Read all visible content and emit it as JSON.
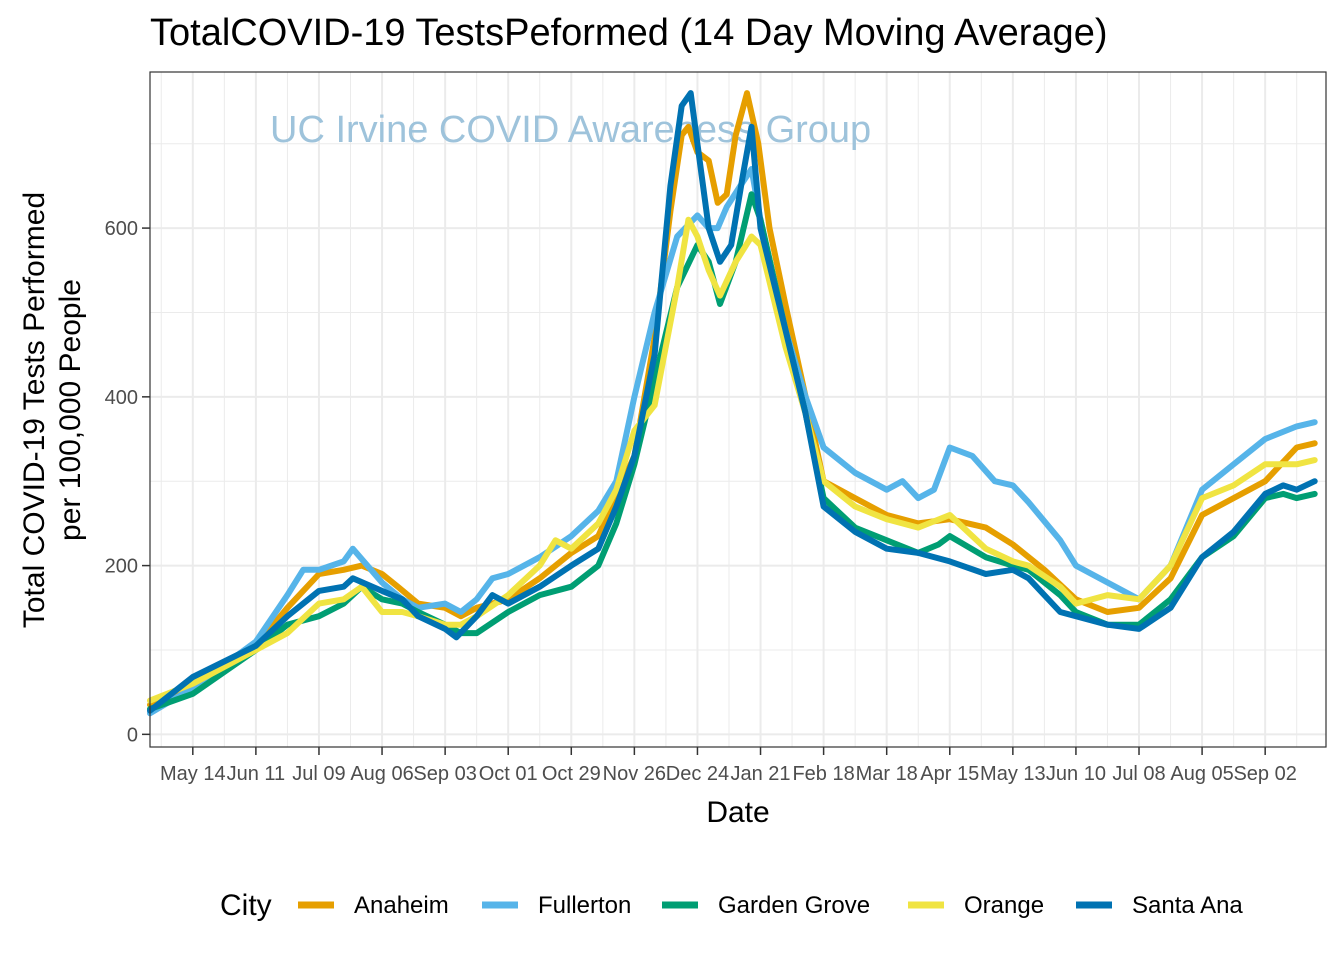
{
  "chart_data": {
    "type": "line",
    "title": "TotalCOVID-19 TestsPeformed (14 Day Moving Average)",
    "annotation": "UC Irvine COVID Awareness Group",
    "xlabel": "Date",
    "ylabel_line1": "Total COVID-19 Tests Performed",
    "ylabel_line2": "per 100,000 People",
    "ylim": [
      -15,
      785
    ],
    "yticks": [
      0,
      200,
      400,
      600
    ],
    "xlim": [
      "2020-04-25",
      "2021-09-29"
    ],
    "xticks": [
      {
        "date": "2020-05-14",
        "label": "May 14"
      },
      {
        "date": "2020-06-11",
        "label": "Jun 11"
      },
      {
        "date": "2020-07-09",
        "label": "Jul 09"
      },
      {
        "date": "2020-08-06",
        "label": "Aug 06"
      },
      {
        "date": "2020-09-03",
        "label": "Sep 03"
      },
      {
        "date": "2020-10-01",
        "label": "Oct 01"
      },
      {
        "date": "2020-10-29",
        "label": "Oct 29"
      },
      {
        "date": "2020-11-26",
        "label": "Nov 26"
      },
      {
        "date": "2020-12-24",
        "label": "Dec 24"
      },
      {
        "date": "2021-01-21",
        "label": "Jan 21"
      },
      {
        "date": "2021-02-18",
        "label": "Feb 18"
      },
      {
        "date": "2021-03-18",
        "label": "Mar 18"
      },
      {
        "date": "2021-04-15",
        "label": "Apr 15"
      },
      {
        "date": "2021-05-13",
        "label": "May 13"
      },
      {
        "date": "2021-06-10",
        "label": "Jun 10"
      },
      {
        "date": "2021-07-08",
        "label": "Jul 08"
      },
      {
        "date": "2021-08-05",
        "label": "Aug 05"
      },
      {
        "date": "2021-09-02",
        "label": "Sep 02"
      }
    ],
    "grid": true,
    "legend": {
      "title": "City",
      "placement": "bottom"
    },
    "series": [
      {
        "name": "Anaheim",
        "color": "#E69F00",
        "points": [
          [
            "2020-04-25",
            35
          ],
          [
            "2020-05-14",
            60
          ],
          [
            "2020-06-11",
            105
          ],
          [
            "2020-06-25",
            150
          ],
          [
            "2020-07-09",
            190
          ],
          [
            "2020-07-20",
            195
          ],
          [
            "2020-07-28",
            200
          ],
          [
            "2020-08-06",
            190
          ],
          [
            "2020-08-13",
            175
          ],
          [
            "2020-08-22",
            155
          ],
          [
            "2020-09-03",
            150
          ],
          [
            "2020-09-10",
            140
          ],
          [
            "2020-09-17",
            150
          ],
          [
            "2020-10-01",
            160
          ],
          [
            "2020-10-15",
            185
          ],
          [
            "2020-10-29",
            215
          ],
          [
            "2020-11-10",
            235
          ],
          [
            "2020-11-26",
            330
          ],
          [
            "2020-12-05",
            470
          ],
          [
            "2020-12-12",
            620
          ],
          [
            "2020-12-17",
            710
          ],
          [
            "2020-12-20",
            720
          ],
          [
            "2020-12-24",
            690
          ],
          [
            "2020-12-29",
            680
          ],
          [
            "2021-01-02",
            630
          ],
          [
            "2021-01-06",
            640
          ],
          [
            "2021-01-10",
            710
          ],
          [
            "2021-01-15",
            760
          ],
          [
            "2021-01-20",
            700
          ],
          [
            "2021-01-25",
            600
          ],
          [
            "2021-02-01",
            510
          ],
          [
            "2021-02-10",
            400
          ],
          [
            "2021-02-18",
            300
          ],
          [
            "2021-03-04",
            280
          ],
          [
            "2021-03-18",
            260
          ],
          [
            "2021-04-01",
            250
          ],
          [
            "2021-04-15",
            255
          ],
          [
            "2021-05-01",
            245
          ],
          [
            "2021-05-13",
            225
          ],
          [
            "2021-05-27",
            195
          ],
          [
            "2021-06-10",
            160
          ],
          [
            "2021-06-24",
            145
          ],
          [
            "2021-07-08",
            150
          ],
          [
            "2021-07-22",
            185
          ],
          [
            "2021-08-05",
            260
          ],
          [
            "2021-08-19",
            280
          ],
          [
            "2021-09-02",
            300
          ],
          [
            "2021-09-16",
            340
          ],
          [
            "2021-09-24",
            345
          ]
        ]
      },
      {
        "name": "Fullerton",
        "color": "#56B4E9",
        "points": [
          [
            "2020-04-25",
            25
          ],
          [
            "2020-05-14",
            55
          ],
          [
            "2020-06-11",
            110
          ],
          [
            "2020-06-25",
            165
          ],
          [
            "2020-07-02",
            195
          ],
          [
            "2020-07-09",
            195
          ],
          [
            "2020-07-20",
            205
          ],
          [
            "2020-07-24",
            220
          ],
          [
            "2020-08-06",
            180
          ],
          [
            "2020-08-15",
            160
          ],
          [
            "2020-08-22",
            150
          ],
          [
            "2020-09-03",
            155
          ],
          [
            "2020-09-10",
            145
          ],
          [
            "2020-09-17",
            160
          ],
          [
            "2020-09-24",
            185
          ],
          [
            "2020-10-01",
            190
          ],
          [
            "2020-10-15",
            210
          ],
          [
            "2020-10-29",
            235
          ],
          [
            "2020-11-10",
            265
          ],
          [
            "2020-11-18",
            300
          ],
          [
            "2020-11-26",
            400
          ],
          [
            "2020-12-05",
            500
          ],
          [
            "2020-12-15",
            590
          ],
          [
            "2020-12-24",
            615
          ],
          [
            "2020-12-29",
            600
          ],
          [
            "2021-01-02",
            600
          ],
          [
            "2021-01-06",
            625
          ],
          [
            "2021-01-12",
            650
          ],
          [
            "2021-01-17",
            670
          ],
          [
            "2021-01-21",
            610
          ],
          [
            "2021-02-01",
            480
          ],
          [
            "2021-02-10",
            400
          ],
          [
            "2021-02-18",
            340
          ],
          [
            "2021-03-04",
            310
          ],
          [
            "2021-03-18",
            290
          ],
          [
            "2021-03-25",
            300
          ],
          [
            "2021-04-01",
            280
          ],
          [
            "2021-04-08",
            290
          ],
          [
            "2021-04-15",
            340
          ],
          [
            "2021-04-25",
            330
          ],
          [
            "2021-05-05",
            300
          ],
          [
            "2021-05-13",
            295
          ],
          [
            "2021-05-20",
            275
          ],
          [
            "2021-06-03",
            230
          ],
          [
            "2021-06-10",
            200
          ],
          [
            "2021-06-24",
            180
          ],
          [
            "2021-07-08",
            160
          ],
          [
            "2021-07-22",
            200
          ],
          [
            "2021-08-05",
            290
          ],
          [
            "2021-08-19",
            320
          ],
          [
            "2021-09-02",
            350
          ],
          [
            "2021-09-16",
            365
          ],
          [
            "2021-09-24",
            370
          ]
        ]
      },
      {
        "name": "Garden Grove",
        "color": "#009E73",
        "points": [
          [
            "2020-04-25",
            30
          ],
          [
            "2020-05-14",
            48
          ],
          [
            "2020-06-11",
            100
          ],
          [
            "2020-06-25",
            130
          ],
          [
            "2020-07-09",
            140
          ],
          [
            "2020-07-20",
            155
          ],
          [
            "2020-07-28",
            175
          ],
          [
            "2020-08-06",
            160
          ],
          [
            "2020-08-15",
            155
          ],
          [
            "2020-08-22",
            145
          ],
          [
            "2020-09-03",
            130
          ],
          [
            "2020-09-10",
            120
          ],
          [
            "2020-09-17",
            120
          ],
          [
            "2020-10-01",
            145
          ],
          [
            "2020-10-15",
            165
          ],
          [
            "2020-10-29",
            175
          ],
          [
            "2020-11-10",
            200
          ],
          [
            "2020-11-18",
            250
          ],
          [
            "2020-11-26",
            320
          ],
          [
            "2020-12-05",
            420
          ],
          [
            "2020-12-15",
            530
          ],
          [
            "2020-12-24",
            580
          ],
          [
            "2020-12-29",
            560
          ],
          [
            "2021-01-03",
            510
          ],
          [
            "2021-01-10",
            560
          ],
          [
            "2021-01-17",
            640
          ],
          [
            "2021-01-21",
            610
          ],
          [
            "2021-02-01",
            480
          ],
          [
            "2021-02-10",
            380
          ],
          [
            "2021-02-18",
            280
          ],
          [
            "2021-03-04",
            245
          ],
          [
            "2021-03-18",
            230
          ],
          [
            "2021-04-01",
            215
          ],
          [
            "2021-04-10",
            225
          ],
          [
            "2021-04-15",
            235
          ],
          [
            "2021-05-01",
            210
          ],
          [
            "2021-05-13",
            200
          ],
          [
            "2021-05-20",
            195
          ],
          [
            "2021-06-03",
            165
          ],
          [
            "2021-06-10",
            145
          ],
          [
            "2021-06-24",
            130
          ],
          [
            "2021-07-08",
            130
          ],
          [
            "2021-07-22",
            160
          ],
          [
            "2021-08-05",
            210
          ],
          [
            "2021-08-19",
            235
          ],
          [
            "2021-09-02",
            280
          ],
          [
            "2021-09-10",
            285
          ],
          [
            "2021-09-16",
            280
          ],
          [
            "2021-09-24",
            285
          ]
        ]
      },
      {
        "name": "Orange",
        "color": "#F0E442",
        "points": [
          [
            "2020-04-25",
            40
          ],
          [
            "2020-05-14",
            60
          ],
          [
            "2020-06-11",
            100
          ],
          [
            "2020-06-25",
            120
          ],
          [
            "2020-07-09",
            155
          ],
          [
            "2020-07-20",
            160
          ],
          [
            "2020-07-28",
            175
          ],
          [
            "2020-08-06",
            145
          ],
          [
            "2020-08-15",
            145
          ],
          [
            "2020-08-22",
            140
          ],
          [
            "2020-09-03",
            130
          ],
          [
            "2020-09-10",
            130
          ],
          [
            "2020-09-17",
            140
          ],
          [
            "2020-10-01",
            165
          ],
          [
            "2020-10-15",
            200
          ],
          [
            "2020-10-22",
            230
          ],
          [
            "2020-10-29",
            220
          ],
          [
            "2020-11-10",
            250
          ],
          [
            "2020-11-18",
            290
          ],
          [
            "2020-11-26",
            360
          ],
          [
            "2020-12-05",
            390
          ],
          [
            "2020-12-15",
            530
          ],
          [
            "2020-12-20",
            610
          ],
          [
            "2020-12-24",
            590
          ],
          [
            "2020-12-29",
            550
          ],
          [
            "2021-01-03",
            520
          ],
          [
            "2021-01-10",
            560
          ],
          [
            "2021-01-17",
            590
          ],
          [
            "2021-01-21",
            580
          ],
          [
            "2021-02-01",
            460
          ],
          [
            "2021-02-10",
            380
          ],
          [
            "2021-02-18",
            300
          ],
          [
            "2021-03-04",
            270
          ],
          [
            "2021-03-18",
            255
          ],
          [
            "2021-04-01",
            245
          ],
          [
            "2021-04-15",
            260
          ],
          [
            "2021-05-01",
            220
          ],
          [
            "2021-05-13",
            205
          ],
          [
            "2021-05-20",
            200
          ],
          [
            "2021-06-03",
            175
          ],
          [
            "2021-06-10",
            155
          ],
          [
            "2021-06-24",
            165
          ],
          [
            "2021-07-08",
            160
          ],
          [
            "2021-07-22",
            200
          ],
          [
            "2021-08-05",
            280
          ],
          [
            "2021-08-19",
            295
          ],
          [
            "2021-09-02",
            320
          ],
          [
            "2021-09-16",
            320
          ],
          [
            "2021-09-24",
            325
          ]
        ]
      },
      {
        "name": "Santa Ana",
        "color": "#0072B2",
        "points": [
          [
            "2020-04-25",
            28
          ],
          [
            "2020-05-14",
            68
          ],
          [
            "2020-06-11",
            105
          ],
          [
            "2020-06-25",
            140
          ],
          [
            "2020-07-09",
            170
          ],
          [
            "2020-07-20",
            175
          ],
          [
            "2020-07-24",
            185
          ],
          [
            "2020-08-06",
            170
          ],
          [
            "2020-08-15",
            160
          ],
          [
            "2020-08-22",
            140
          ],
          [
            "2020-09-03",
            125
          ],
          [
            "2020-09-08",
            115
          ],
          [
            "2020-09-17",
            140
          ],
          [
            "2020-09-24",
            165
          ],
          [
            "2020-10-01",
            155
          ],
          [
            "2020-10-15",
            175
          ],
          [
            "2020-10-29",
            200
          ],
          [
            "2020-11-10",
            220
          ],
          [
            "2020-11-18",
            270
          ],
          [
            "2020-11-26",
            330
          ],
          [
            "2020-12-05",
            450
          ],
          [
            "2020-12-12",
            650
          ],
          [
            "2020-12-17",
            745
          ],
          [
            "2020-12-21",
            760
          ],
          [
            "2020-12-24",
            700
          ],
          [
            "2020-12-29",
            600
          ],
          [
            "2021-01-03",
            560
          ],
          [
            "2021-01-08",
            580
          ],
          [
            "2021-01-13",
            660
          ],
          [
            "2021-01-17",
            720
          ],
          [
            "2021-01-21",
            600
          ],
          [
            "2021-02-01",
            480
          ],
          [
            "2021-02-10",
            380
          ],
          [
            "2021-02-18",
            270
          ],
          [
            "2021-03-04",
            240
          ],
          [
            "2021-03-18",
            220
          ],
          [
            "2021-04-01",
            215
          ],
          [
            "2021-04-15",
            205
          ],
          [
            "2021-05-01",
            190
          ],
          [
            "2021-05-13",
            195
          ],
          [
            "2021-05-20",
            185
          ],
          [
            "2021-06-03",
            145
          ],
          [
            "2021-06-10",
            140
          ],
          [
            "2021-06-24",
            130
          ],
          [
            "2021-07-08",
            125
          ],
          [
            "2021-07-22",
            150
          ],
          [
            "2021-08-05",
            210
          ],
          [
            "2021-08-19",
            240
          ],
          [
            "2021-09-02",
            285
          ],
          [
            "2021-09-10",
            295
          ],
          [
            "2021-09-16",
            290
          ],
          [
            "2021-09-24",
            300
          ]
        ]
      }
    ]
  }
}
